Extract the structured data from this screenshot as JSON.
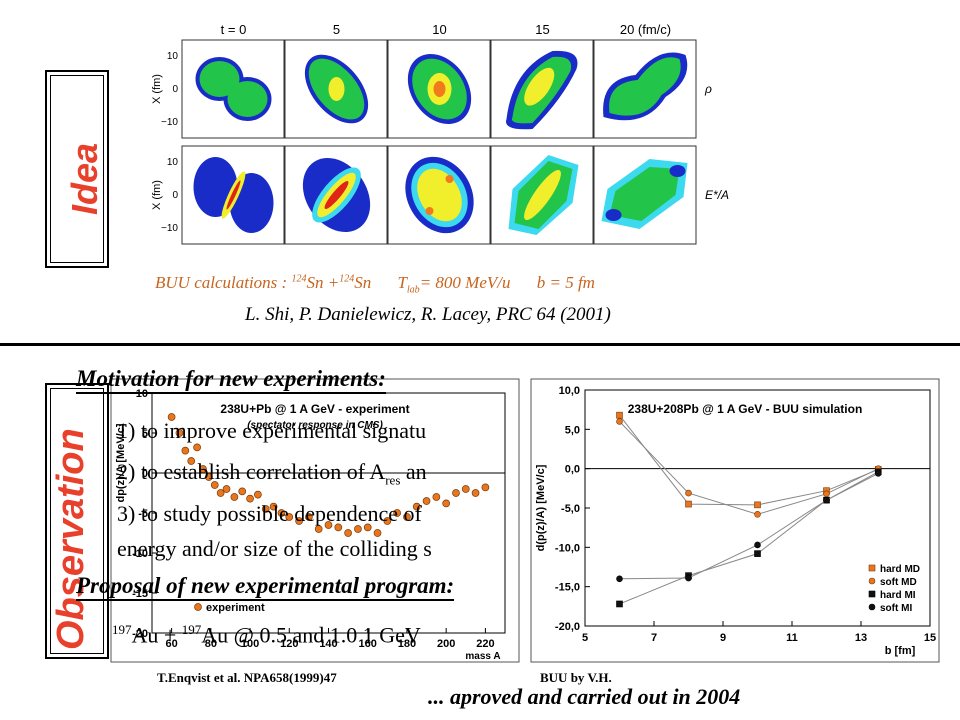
{
  "idea": {
    "side_label": "Idea"
  },
  "observation": {
    "side_label": "Observation"
  },
  "buu_grid": {
    "time_labels": [
      "t = 0",
      "5",
      "10",
      "15",
      "20  (fm/c)"
    ],
    "row_labels": [
      "ρ",
      "E*/A"
    ],
    "y_axis_label": "X  (fm)",
    "y_ticks": [
      "10",
      "0",
      "−10"
    ],
    "colors": {
      "dark_blue": "#1a2cc8",
      "cyan": "#3dd9ef",
      "green": "#22c44a",
      "yellow": "#f1ef2c",
      "orange": "#f07a1c",
      "red": "#e02518"
    }
  },
  "caption": {
    "pre": "BUU calculations : ",
    "sup1": "124",
    "mid": "Sn +",
    "sup2": "124",
    "sn": "Sn",
    "tlab": "T",
    "lab_sub": "lab",
    "energy": "= 800 MeV/u",
    "impact": "b = 5 fm"
  },
  "reference": "L. Shi, P. Danielewicz, R. Lacey, PRC 64 (2001)",
  "motivation": {
    "title": "Motivation for new experiments:",
    "items": [
      "1) to improve experimental signatu",
      "2) to establish correlation of A",
      "res",
      " an",
      "3) to study possible dependence of",
      "energy and/or size of the colliding s"
    ]
  },
  "proposal": {
    "title": "Proposal of new experimental program:",
    "sup_a": "197",
    "line_a": "Au +",
    "sup_b": "197",
    "line_b": "Au @ 0.5 and 1.0   1 GeV"
  },
  "exp_chart": {
    "title": "238U+Pb @ 1 A GeV - experiment",
    "subtitle": "(spectator response in CMS)",
    "ylabel": "dp(z)/A [MeV/c]",
    "xlabel": "mass A",
    "legend": "experiment",
    "yticks": [
      "10",
      "5",
      "0",
      "-5",
      "-10",
      "-15",
      "-20"
    ],
    "xticks": [
      "60",
      "80",
      "100",
      "120",
      "140",
      "160",
      "180",
      "200",
      "220"
    ],
    "points": [
      [
        60,
        7
      ],
      [
        64,
        5
      ],
      [
        67,
        2.8
      ],
      [
        70,
        1.5
      ],
      [
        73,
        3.2
      ],
      [
        76,
        0.5
      ],
      [
        79,
        -0.5
      ],
      [
        82,
        -1.5
      ],
      [
        85,
        -2.5
      ],
      [
        88,
        -2
      ],
      [
        92,
        -3
      ],
      [
        96,
        -2.3
      ],
      [
        100,
        -3.2
      ],
      [
        104,
        -2.7
      ],
      [
        108,
        -4.5
      ],
      [
        112,
        -4.2
      ],
      [
        116,
        -5
      ],
      [
        120,
        -5.5
      ],
      [
        125,
        -6
      ],
      [
        130,
        -5.5
      ],
      [
        135,
        -7
      ],
      [
        140,
        -6.5
      ],
      [
        145,
        -6.8
      ],
      [
        150,
        -7.5
      ],
      [
        155,
        -7
      ],
      [
        160,
        -6.8
      ],
      [
        165,
        -7.5
      ],
      [
        170,
        -6
      ],
      [
        175,
        -5
      ],
      [
        180,
        -5.5
      ],
      [
        185,
        -4.2
      ],
      [
        190,
        -3.5
      ],
      [
        195,
        -3
      ],
      [
        200,
        -3.8
      ],
      [
        205,
        -2.5
      ],
      [
        210,
        -2
      ],
      [
        215,
        -2.5
      ],
      [
        220,
        -1.8
      ]
    ],
    "source": "T.Enqvist et al. NPA658(1999)47"
  },
  "chart_data": {
    "type": "line",
    "title": "238U+208Pb @ 1 A GeV - BUU simulation",
    "xlabel": "b [fm]",
    "ylabel": "d(p(z)/A) [MeV/c]",
    "xlim": [
      5,
      15
    ],
    "ylim": [
      -20,
      10
    ],
    "xticks": [
      "5",
      "7",
      "9",
      "11",
      "13",
      "15"
    ],
    "yticks": [
      "10,0",
      "5,0",
      "0,0",
      "-5,0",
      "-10,0",
      "-15,0",
      "-20,0"
    ],
    "series": [
      {
        "name": "hard MD",
        "marker": "orange-square",
        "x": [
          6,
          8,
          10,
          12,
          13.5
        ],
        "y": [
          6.8,
          -4.5,
          -4.6,
          -2.8,
          -0.1
        ]
      },
      {
        "name": "soft MD",
        "marker": "orange-circle",
        "x": [
          6,
          8,
          10,
          12,
          13.5
        ],
        "y": [
          6.0,
          -3.1,
          -5.8,
          -3.2,
          0.0
        ]
      },
      {
        "name": "hard MI",
        "marker": "black-square",
        "x": [
          6,
          8,
          10,
          12,
          13.5
        ],
        "y": [
          -17.2,
          -13.6,
          -10.8,
          -4.0,
          -0.4
        ]
      },
      {
        "name": "soft MI",
        "marker": "black-circle",
        "x": [
          6,
          8,
          10,
          12,
          13.5
        ],
        "y": [
          -14.0,
          -13.9,
          -9.7,
          -4.0,
          -0.6
        ]
      }
    ],
    "legend": "bottom-right",
    "source": "BUU by V.H."
  },
  "footer": {
    "text": "... aproved and carried out in 2004"
  }
}
